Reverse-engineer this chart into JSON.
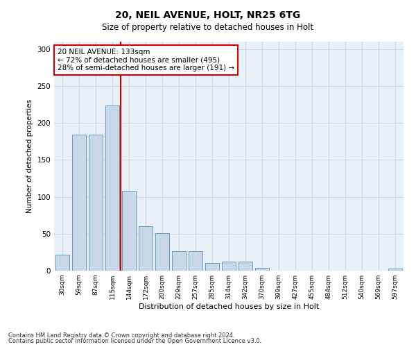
{
  "title1": "20, NEIL AVENUE, HOLT, NR25 6TG",
  "title2": "Size of property relative to detached houses in Holt",
  "xlabel": "Distribution of detached houses by size in Holt",
  "ylabel": "Number of detached properties",
  "bar_labels": [
    "30sqm",
    "59sqm",
    "87sqm",
    "115sqm",
    "144sqm",
    "172sqm",
    "200sqm",
    "229sqm",
    "257sqm",
    "285sqm",
    "314sqm",
    "342sqm",
    "370sqm",
    "399sqm",
    "427sqm",
    "455sqm",
    "484sqm",
    "512sqm",
    "540sqm",
    "569sqm",
    "597sqm"
  ],
  "bar_values": [
    22,
    184,
    184,
    224,
    108,
    60,
    51,
    26,
    26,
    10,
    12,
    12,
    4,
    0,
    0,
    0,
    0,
    0,
    0,
    0,
    3
  ],
  "bar_color": "#c8d8e8",
  "bar_edgecolor": "#6699bb",
  "vline_color": "#cc0000",
  "annotation_text": "20 NEIL AVENUE: 133sqm\n← 72% of detached houses are smaller (495)\n28% of semi-detached houses are larger (191) →",
  "annotation_box_color": "#ffffff",
  "annotation_box_edgecolor": "#cc0000",
  "background_color": "#ffffff",
  "ax_facecolor": "#e8f0f8",
  "grid_color": "#ccd8e4",
  "ylim": [
    0,
    310
  ],
  "yticks": [
    0,
    50,
    100,
    150,
    200,
    250,
    300
  ],
  "footer1": "Contains HM Land Registry data © Crown copyright and database right 2024.",
  "footer2": "Contains public sector information licensed under the Open Government Licence v3.0."
}
